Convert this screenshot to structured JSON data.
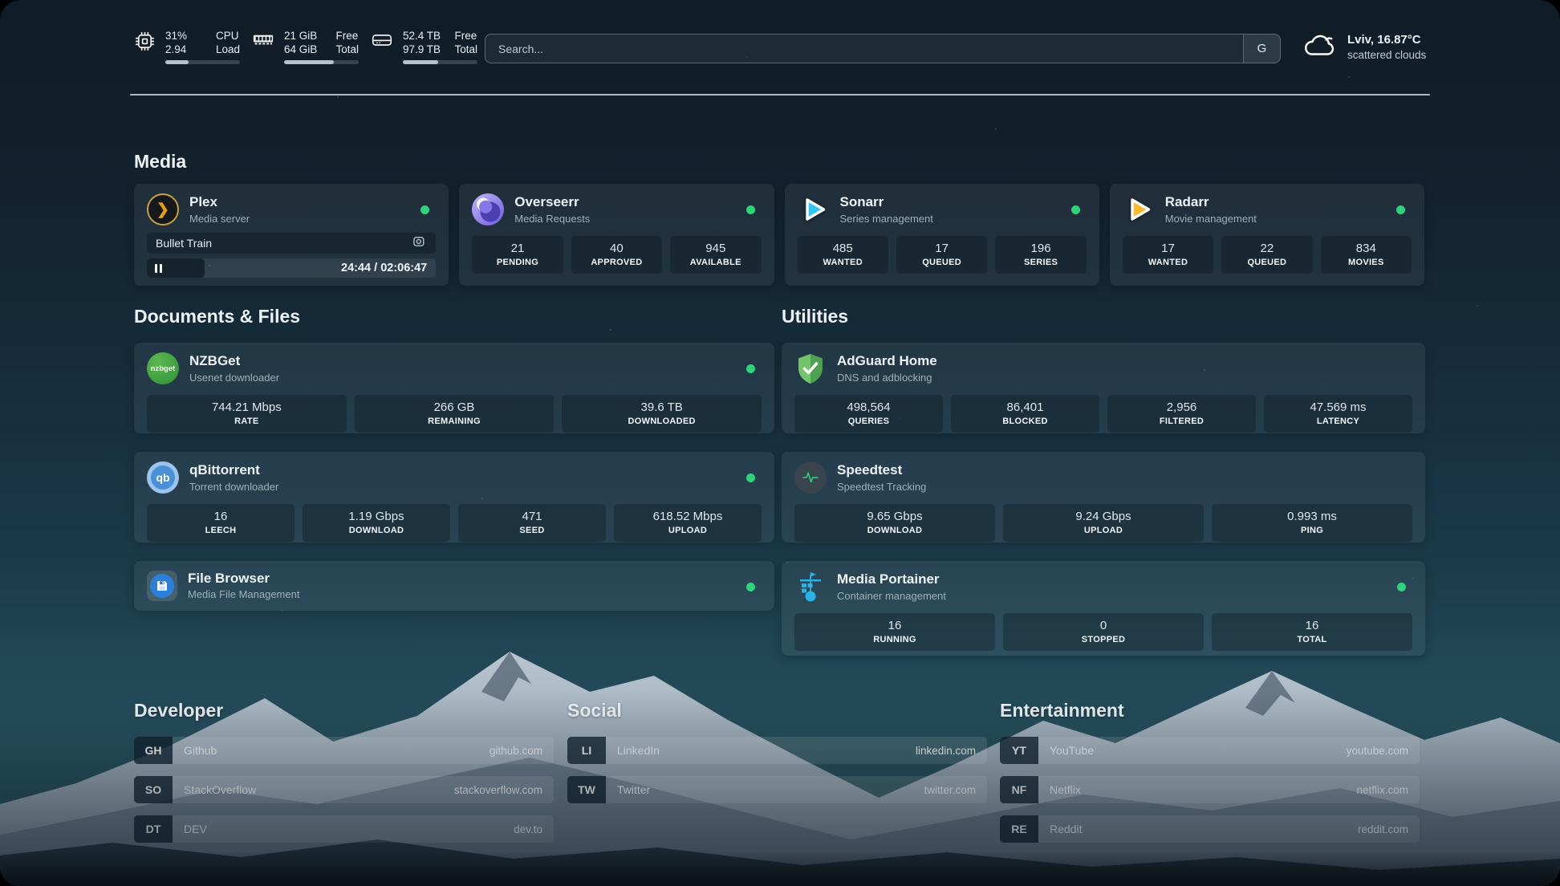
{
  "header": {
    "cpu": {
      "icon": "cpu-chip-icon",
      "value_top": "31%",
      "value_bottom": "2.94",
      "label_top": "CPU",
      "label_bottom": "Load",
      "bar_fill_percent": 31
    },
    "memory": {
      "icon": "ram-icon",
      "value_top": "21 GiB",
      "value_bottom": "64 GiB",
      "label_top": "Free",
      "label_bottom": "Total",
      "bar_fill_percent": 67
    },
    "disk": {
      "icon": "hard-drive-icon",
      "value_top": "52.4 TB",
      "value_bottom": "97.9 TB",
      "label_top": "Free",
      "label_bottom": "Total",
      "bar_fill_percent": 47
    },
    "search": {
      "placeholder": "Search...",
      "engine_button": "G"
    },
    "weather": {
      "icon": "cloud-icon",
      "location_temperature": "Lviv, 16.87°C",
      "condition": "scattered clouds"
    }
  },
  "sections": {
    "media": {
      "title": "Media",
      "plex": {
        "name": "Plex",
        "subtitle": "Media server",
        "logo_glyph": "❯",
        "status": "online",
        "now_playing": {
          "title": "Bullet Train",
          "time": "24:44 / 02:06:47",
          "progress_percent": 20
        }
      },
      "overseerr": {
        "name": "Overseerr",
        "subtitle": "Media Requests",
        "status": "online",
        "stats": [
          {
            "value": "21",
            "label": "PENDING"
          },
          {
            "value": "40",
            "label": "APPROVED"
          },
          {
            "value": "945",
            "label": "AVAILABLE"
          }
        ]
      },
      "sonarr": {
        "name": "Sonarr",
        "subtitle": "Series management",
        "status": "online",
        "stats": [
          {
            "value": "485",
            "label": "WANTED"
          },
          {
            "value": "17",
            "label": "QUEUED"
          },
          {
            "value": "196",
            "label": "SERIES"
          }
        ]
      },
      "radarr": {
        "name": "Radarr",
        "subtitle": "Movie management",
        "status": "online",
        "stats": [
          {
            "value": "17",
            "label": "WANTED"
          },
          {
            "value": "22",
            "label": "QUEUED"
          },
          {
            "value": "834",
            "label": "MOVIES"
          }
        ]
      }
    },
    "documents": {
      "title": "Documents & Files",
      "nzbget": {
        "name": "NZBGet",
        "subtitle": "Usenet downloader",
        "logo_text": "nzbget",
        "status": "online",
        "stats": [
          {
            "value": "744.21 Mbps",
            "label": "RATE"
          },
          {
            "value": "266 GB",
            "label": "REMAINING"
          },
          {
            "value": "39.6 TB",
            "label": "DOWNLOADED"
          }
        ]
      },
      "qbittorrent": {
        "name": "qBittorrent",
        "subtitle": "Torrent downloader",
        "logo_text": "qb",
        "status": "online",
        "stats": [
          {
            "value": "16",
            "label": "LEECH"
          },
          {
            "value": "1.19 Gbps",
            "label": "DOWNLOAD"
          },
          {
            "value": "471",
            "label": "SEED"
          },
          {
            "value": "618.52 Mbps",
            "label": "UPLOAD"
          }
        ]
      },
      "filebrowser": {
        "name": "File Browser",
        "subtitle": "Media File Management",
        "status": "online"
      }
    },
    "utilities": {
      "title": "Utilities",
      "adguard": {
        "name": "AdGuard Home",
        "subtitle": "DNS and adblocking",
        "stats": [
          {
            "value": "498,564",
            "label": "QUERIES"
          },
          {
            "value": "86,401",
            "label": "BLOCKED"
          },
          {
            "value": "2,956",
            "label": "FILTERED"
          },
          {
            "value": "47.569 ms",
            "label": "LATENCY"
          }
        ]
      },
      "speedtest": {
        "name": "Speedtest",
        "subtitle": "Speedtest Tracking",
        "stats": [
          {
            "value": "9.65 Gbps",
            "label": "DOWNLOAD"
          },
          {
            "value": "9.24 Gbps",
            "label": "UPLOAD"
          },
          {
            "value": "0.993 ms",
            "label": "PING"
          }
        ]
      },
      "portainer": {
        "name": "Media Portainer",
        "subtitle": "Container management",
        "status": "online",
        "stats": [
          {
            "value": "16",
            "label": "RUNNING"
          },
          {
            "value": "0",
            "label": "STOPPED"
          },
          {
            "value": "16",
            "label": "TOTAL"
          }
        ]
      }
    },
    "bookmarks": {
      "developer": {
        "title": "Developer",
        "items": [
          {
            "abbr": "GH",
            "name": "Github",
            "url": "github.com"
          },
          {
            "abbr": "SO",
            "name": "StackOverflow",
            "url": "stackoverflow.com"
          },
          {
            "abbr": "DT",
            "name": "DEV",
            "url": "dev.to"
          }
        ]
      },
      "social": {
        "title": "Social",
        "items": [
          {
            "abbr": "LI",
            "name": "LinkedIn",
            "url": "linkedin.com"
          },
          {
            "abbr": "TW",
            "name": "Twitter",
            "url": "twitter.com"
          }
        ]
      },
      "entertainment": {
        "title": "Entertainment",
        "items": [
          {
            "abbr": "YT",
            "name": "YouTube",
            "url": "youtube.com"
          },
          {
            "abbr": "NF",
            "name": "Netflix",
            "url": "netflix.com"
          },
          {
            "abbr": "RE",
            "name": "Reddit",
            "url": "reddit.com"
          }
        ]
      }
    }
  },
  "icons": {
    "cpu": "cpu-chip-icon",
    "memory": "ram-icon",
    "disk": "hard-drive-icon",
    "weather": "cloud-icon",
    "plex": "plex-chevron-logo",
    "overseerr": "overseerr-eye-logo",
    "sonarr": "sonarr-play-logo",
    "radarr": "radarr-play-logo",
    "nzbget": "nzbget-logo",
    "qbittorrent": "qbittorrent-logo",
    "filebrowser": "filebrowser-floppy-logo",
    "adguard": "adguard-shield-logo",
    "speedtest": "speedtest-pulse-logo",
    "portainer": "portainer-crane-logo",
    "plex_session": "video-camera-icon",
    "plex_state": "pause-icon",
    "status": "online-status-dot"
  },
  "colors": {
    "status_online": "#2fd37a",
    "plex_gold": "#e7a00d",
    "sonarr_blue": "#35c5f4",
    "radarr_orange": "#ffb92a",
    "adguard_green": "#52a852",
    "portainer_blue": "#29b3e6",
    "qbittorrent_blue": "#4a90d8",
    "nzbget_green": "#3f9e3f",
    "overseerr_purple": "#6c5ce0",
    "filebrowser_blue": "#2b7fd9"
  }
}
